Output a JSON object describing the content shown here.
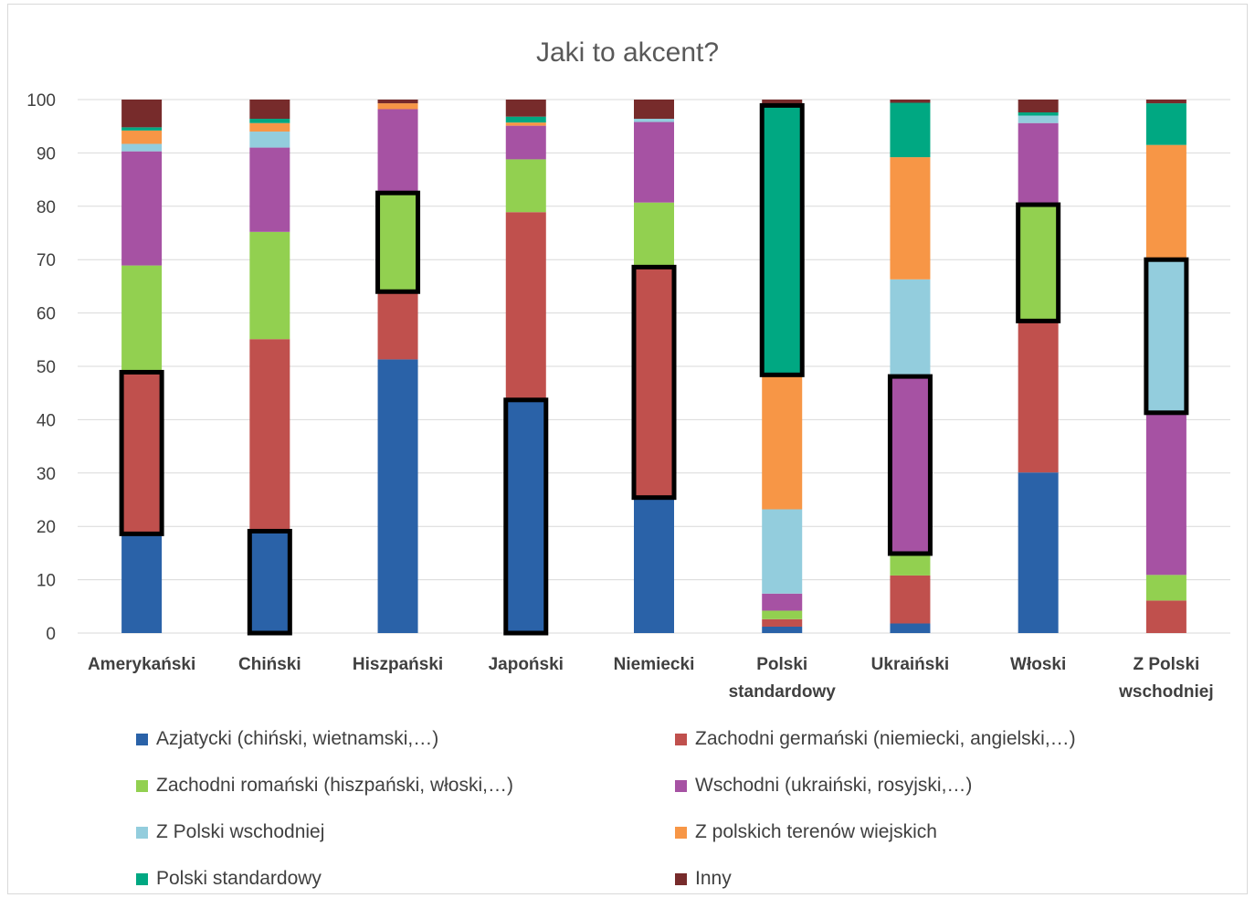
{
  "chart_data": {
    "type": "bar",
    "stacked": true,
    "title": "Jaki to akcent?",
    "xlabel": "",
    "ylabel": "",
    "ylim": [
      0,
      100
    ],
    "yticks": [
      0,
      10,
      20,
      30,
      40,
      50,
      60,
      70,
      80,
      90,
      100
    ],
    "grid": true,
    "legend_position": "bottom",
    "categories": [
      "Amerykański",
      "Chiński",
      "Hiszpański",
      "Japoński",
      "Niemiecki",
      "Polski standardowy",
      "Ukraiński",
      "Włoski",
      "Z Polski wschodniej"
    ],
    "series": [
      {
        "name": "Azjatycki (chiński, wietnamski,…)",
        "color": "#2A62A8",
        "values": [
          18.6,
          19.1,
          51.3,
          43.7,
          25.4,
          1.2,
          1.8,
          30.1,
          0
        ]
      },
      {
        "name": "Zachodni germański (niemiecki, angielski,…)",
        "color": "#C0504D",
        "values": [
          30.3,
          36.0,
          12.7,
          35.2,
          43.2,
          1.4,
          9.0,
          28.4,
          6.1
        ]
      },
      {
        "name": "Zachodni romański (hiszpański, włoski,…)",
        "color": "#92D050",
        "values": [
          20.0,
          20.1,
          18.5,
          9.9,
          12.1,
          1.6,
          4.1,
          21.8,
          4.8
        ]
      },
      {
        "name": "Wschodni (ukraiński, rosyjski,…)",
        "color": "#A652A3",
        "values": [
          21.4,
          15.8,
          15.7,
          6.3,
          15.1,
          3.2,
          33.2,
          15.3,
          30.4
        ]
      },
      {
        "name": "Z Polski wschodniej",
        "color": "#93CDDD",
        "values": [
          1.4,
          3.0,
          0.0,
          0.0,
          0.6,
          15.8,
          18.2,
          1.4,
          28.7
        ]
      },
      {
        "name": "Z polskich terenów wiejskich",
        "color": "#F79646",
        "values": [
          2.5,
          1.6,
          1.1,
          0.6,
          0.0,
          25.2,
          22.9,
          0.0,
          21.5
        ]
      },
      {
        "name": "Polski standardowy",
        "color": "#00A882",
        "values": [
          0.6,
          0.8,
          0.0,
          1.1,
          0.0,
          50.5,
          10.2,
          0.6,
          7.8
        ]
      },
      {
        "name": "Inny",
        "color": "#772B2B",
        "values": [
          5.2,
          3.6,
          0.7,
          3.2,
          3.6,
          1.1,
          0.6,
          2.4,
          0.7
        ]
      }
    ],
    "highlighted_segments": [
      {
        "category": "Amerykański",
        "series": "Zachodni germański (niemiecki, angielski,…)"
      },
      {
        "category": "Chiński",
        "series": "Azjatycki (chiński, wietnamski,…)"
      },
      {
        "category": "Hiszpański",
        "series": "Zachodni romański (hiszpański, włoski,…)"
      },
      {
        "category": "Japoński",
        "series": "Azjatycki (chiński, wietnamski,…)"
      },
      {
        "category": "Niemiecki",
        "series": "Zachodni germański (niemiecki, angielski,…)"
      },
      {
        "category": "Polski standardowy",
        "series": "Polski standardowy"
      },
      {
        "category": "Ukraiński",
        "series": "Wschodni (ukraiński, rosyjski,…)"
      },
      {
        "category": "Włoski",
        "series": "Zachodni romański (hiszpański, włoski,…)"
      },
      {
        "category": "Z Polski wschodniej",
        "series": "Z Polski wschodniej"
      }
    ],
    "colors": {
      "grid": "#d9d9d9",
      "axis_text": "#404040",
      "title": "#595959",
      "highlight": "#000000"
    }
  }
}
